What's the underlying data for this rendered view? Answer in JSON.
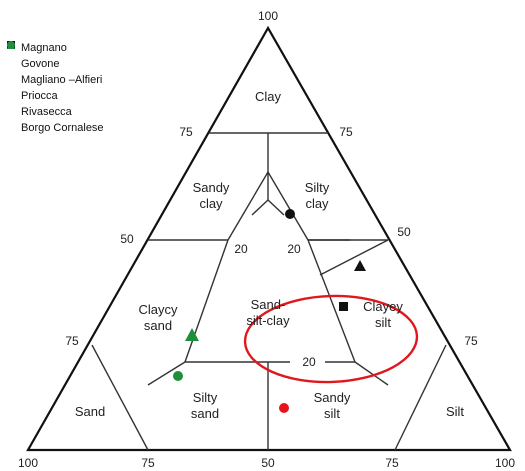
{
  "legend": [
    {
      "label": "Magnano",
      "shape": "circle",
      "color": "#e8141b"
    },
    {
      "label": "Govone",
      "shape": "circle",
      "color": "#111111"
    },
    {
      "label": "Magliano –Alfieri",
      "shape": "square",
      "color": "#111111"
    },
    {
      "label": "Priocca",
      "shape": "triangle",
      "color": "#111111"
    },
    {
      "label": "Rivasecca",
      "shape": "circle",
      "color": "#1e8f3a"
    },
    {
      "label": "Borgo Cornalese",
      "shape": "triangle",
      "color": "#1e8f3a"
    }
  ],
  "axis_labels": {
    "top": "100",
    "left_75": "75",
    "right_75": "75",
    "left_50": "50",
    "right_50": "50",
    "left_25": "75",
    "right_25": "75",
    "bottom_left": "100",
    "bottom_75": "75",
    "bottom_50": "50",
    "bottom_25": "75",
    "bottom_right": "100"
  },
  "regions": {
    "clay": "Clay",
    "sandy_clay_1": "Sandy",
    "sandy_clay_2": "clay",
    "silty_clay_1": "Silty",
    "silty_clay_2": "clay",
    "claycy_sand_1": "Claycy",
    "claycy_sand_2": "sand",
    "sand_silt_clay_1": "Sand-",
    "sand_silt_clay_2": "silt-clay",
    "clayey_silt_1": "Clayey",
    "clayey_silt_2": "silt",
    "sand": "Sand",
    "silty_sand_1": "Silty",
    "silty_sand_2": "sand",
    "sandy_silt_1": "Sandy",
    "sandy_silt_2": "silt",
    "silt": "Silt"
  },
  "inner_labels": {
    "left_20": "20",
    "right_20": "20",
    "bottom_20": "20"
  },
  "highlight": {
    "color": "#e0181e"
  }
}
